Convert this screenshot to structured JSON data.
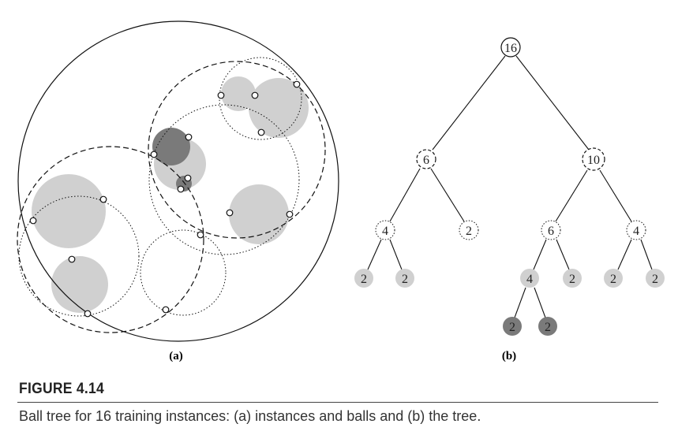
{
  "figure": {
    "title": "FIGURE 4.14",
    "caption": "Ball tree for 16 training instances: (a) instances and balls and (b) the tree."
  },
  "panel_a": {
    "label": "(a)"
  },
  "panel_b": {
    "label": "(b)",
    "tree": {
      "root": "16",
      "level1": [
        "6",
        "10"
      ],
      "level2": [
        "4",
        "2",
        "6",
        "4"
      ],
      "level3": [
        "2",
        "2",
        "4",
        "2",
        "2",
        "2"
      ],
      "level4": [
        "2",
        "2"
      ]
    }
  },
  "colors": {
    "light_gray_ball": "#d0d0d0",
    "dark_gray_ball": "#7a7a7a",
    "line": "#111111"
  }
}
